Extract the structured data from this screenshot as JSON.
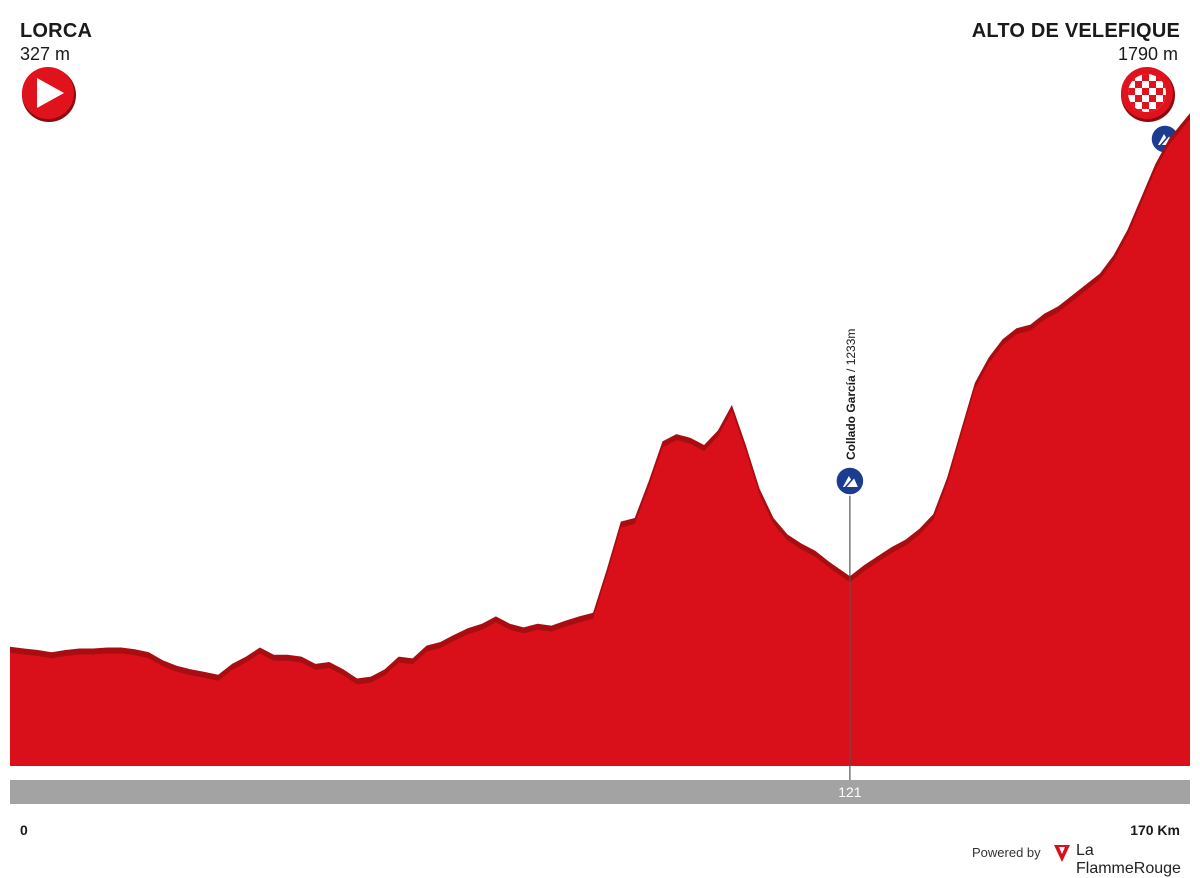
{
  "start": {
    "name": "LORCA",
    "altitude_label": "327 m"
  },
  "finish": {
    "name": "ALTO DE VELEFIQUE",
    "altitude_label": "1790 m"
  },
  "axis": {
    "start_label": "0",
    "end_label": "170 Km"
  },
  "footer": {
    "powered_by": "Powered by",
    "brand": "La FlammeRouge"
  },
  "colors": {
    "profile": "#d9101a",
    "profile_dark": "#a80d12",
    "bar": "#a3a3a3",
    "climb_badge": "#1b3c8f"
  },
  "icons": {
    "start": "play-triangle-icon",
    "finish": "checkered-flag-icon",
    "climb": "mountain-climb-icon"
  },
  "chart_data": {
    "type": "area",
    "xlabel": "",
    "ylabel": "",
    "xlim": [
      0,
      170
    ],
    "ylim": [
      0,
      2100
    ],
    "units": {
      "x": "km",
      "y": "m"
    },
    "x": [
      0,
      2,
      4,
      6,
      8,
      10,
      12,
      14,
      16,
      18,
      20,
      22,
      24,
      26,
      28,
      30,
      32,
      34,
      36,
      38,
      40,
      42,
      44,
      46,
      48,
      50,
      52,
      54,
      56,
      58,
      60,
      62,
      64,
      66,
      68,
      70,
      72,
      74,
      76,
      78,
      80,
      82,
      84,
      86,
      88,
      90,
      92,
      94,
      96,
      98,
      100,
      102,
      104,
      106,
      108,
      110,
      112,
      114,
      116,
      118,
      121,
      123,
      125,
      127,
      129,
      131,
      133,
      135,
      137,
      139,
      141,
      143,
      145,
      147,
      149,
      151,
      153,
      155,
      157,
      159,
      161,
      163,
      165,
      167,
      170
    ],
    "y": [
      327,
      322,
      318,
      312,
      318,
      322,
      322,
      325,
      325,
      320,
      312,
      290,
      275,
      265,
      258,
      250,
      280,
      300,
      325,
      305,
      305,
      300,
      280,
      285,
      265,
      240,
      245,
      265,
      300,
      295,
      330,
      340,
      360,
      378,
      390,
      410,
      390,
      380,
      390,
      385,
      398,
      410,
      420,
      540,
      670,
      680,
      780,
      890,
      910,
      900,
      880,
      920,
      990,
      880,
      760,
      680,
      635,
      610,
      590,
      560,
      520,
      550,
      575,
      600,
      620,
      650,
      690,
      790,
      920,
      1050,
      1120,
      1170,
      1200,
      1210,
      1240,
      1260,
      1290,
      1320,
      1350,
      1400,
      1470,
      1560,
      1650,
      1720,
      1790
    ],
    "climbs": [
      {
        "name": "Collado García",
        "altitude": "1233m",
        "km_label": "121",
        "km": 121
      }
    ]
  }
}
